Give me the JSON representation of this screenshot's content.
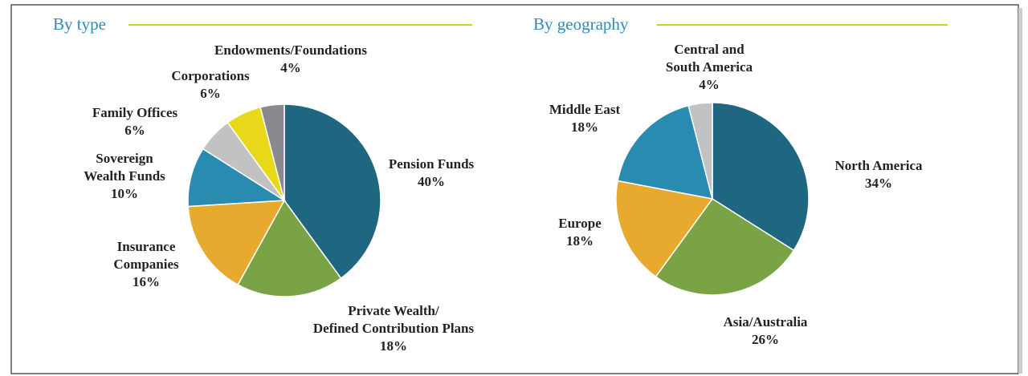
{
  "chart_data": [
    {
      "type": "pie",
      "title": "By type",
      "categories": [
        "Pension Funds",
        "Private Wealth/\nDefined Contribution Plans",
        "Insurance\nCompanies",
        "Sovereign\nWealth Funds",
        "Family Offices",
        "Corporations",
        "Endowments/Foundations"
      ],
      "values": [
        40,
        18,
        16,
        10,
        6,
        6,
        4
      ],
      "value_labels": [
        "40%",
        "18%",
        "16%",
        "10%",
        "6%",
        "6%",
        "4%"
      ],
      "colors": [
        "#1f6680",
        "#7aa346",
        "#e8a92f",
        "#2a8bb0",
        "#c2c2c2",
        "#e8d81a",
        "#8a8a8e"
      ]
    },
    {
      "type": "pie",
      "title": "By geography",
      "categories": [
        "North America",
        "Asia/Australia",
        "Europe",
        "Middle East",
        "Central and\nSouth America"
      ],
      "values": [
        34,
        26,
        18,
        18,
        4
      ],
      "value_labels": [
        "34%",
        "26%",
        "18%",
        "18%",
        "4%"
      ],
      "colors": [
        "#1f6680",
        "#7aa346",
        "#e8a92f",
        "#2a8bb0",
        "#c2c2c2"
      ]
    }
  ]
}
